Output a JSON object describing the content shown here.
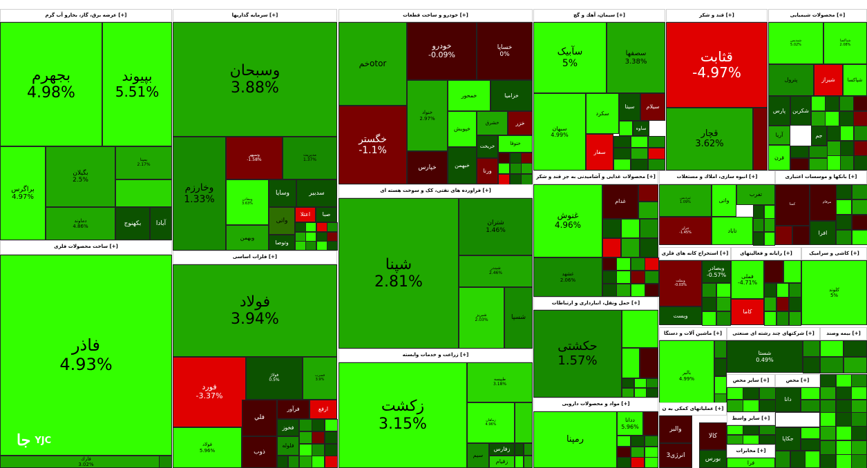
{
  "page": {
    "expand_marker": "[+]"
  },
  "colors": {
    "neutral": "#2b9e04",
    "positive_strong": "#33ff00",
    "negative_strong": "#e00000",
    "negative_dark": "#4a0000"
  },
  "logo": {
    "text": "YJC",
    "glyph": "جا"
  },
  "sectors": [
    {
      "label": "[+] عرضه برق، گاز، بخارو آب گرم"
    },
    {
      "label": "[+] سرمایه گذاریها"
    },
    {
      "label": "[+] خودرو و ساخت قطعات"
    },
    {
      "label": "[+] سیمان، آهك و گچ"
    },
    {
      "label": "[+] قند و شکر"
    },
    {
      "label": "[+] محصولات شیمیایی"
    },
    {
      "label": "[+] ساخت محصولات فلزی"
    },
    {
      "label": "[+] فلزات اساسی"
    },
    {
      "label": "[+] فراورده های نفتی، کک و سوخت هسته ای"
    },
    {
      "label": "[+] محصولات غذایی و آشامیدنی به جز قند و شکر"
    },
    {
      "label": "[+] انبوه سازی، املاك و مستغلات"
    },
    {
      "label": "[+] بانکها و موسسات اعتباری"
    },
    {
      "label": "[+] استخراج کانه های فلزی"
    },
    {
      "label": "[+] رایانه و فعالیتهای"
    },
    {
      "label": "[+] کاشی و سرامیک"
    },
    {
      "label": "[+] حمل ونقل، انبارداری و ارتباطات"
    },
    {
      "label": "[+] ماشین آلات و دستگا"
    },
    {
      "label": "[+] شرکتهای چند رشته ای صنعتی"
    },
    {
      "label": "[+] بیمه وصند"
    },
    {
      "label": "[+] زراعت و خدمات وابسته"
    },
    {
      "label": "[+] مواد و محصولات دارویی"
    },
    {
      "label": "[+] عملیاتهای کمکی به ن"
    },
    {
      "label": "[+] سایر محص"
    },
    {
      "label": "[+] محص"
    },
    {
      "label": "[+] سایر واسط"
    },
    {
      "label": "[+] مخابرات"
    }
  ],
  "stocks": [
    {
      "name": "بجهرم",
      "pct": "4.98%"
    },
    {
      "name": "بپیوند",
      "pct": "5.51%"
    },
    {
      "name": "براگرس",
      "pct": "4.97%"
    },
    {
      "name": "بگیلان",
      "pct": "2.5%"
    },
    {
      "name": "دماوند",
      "pct": "4.86%"
    },
    {
      "name": "بمپنا",
      "pct": "2.17%"
    },
    {
      "name": "بکهنوج",
      "pct": ""
    },
    {
      "name": "آبادا",
      "pct": ""
    },
    {
      "name": "فاذر",
      "pct": "4.93%"
    },
    {
      "name": "فارك",
      "pct": "3.02%"
    },
    {
      "name": "وسبحان",
      "pct": "3.88%"
    },
    {
      "name": "وخارزم",
      "pct": "1.33%"
    },
    {
      "name": "وسپهر",
      "pct": "-1.58%"
    },
    {
      "name": "مدیریت",
      "pct": "1.37%"
    },
    {
      "name": "ومعادن",
      "pct": "3.63%"
    },
    {
      "name": "وبهمن",
      "pct": ""
    },
    {
      "name": "وسایا",
      "pct": ""
    },
    {
      "name": "سدبیر",
      "pct": ""
    },
    {
      "name": "واتی",
      "pct": ""
    },
    {
      "name": "اعتلا",
      "pct": ""
    },
    {
      "name": "صبا",
      "pct": ""
    },
    {
      "name": "وتوصا",
      "pct": ""
    },
    {
      "name": "خمotor",
      "pct": ""
    },
    {
      "name": "خودرو",
      "pct": "-0.09%"
    },
    {
      "name": "خساپا",
      "pct": "0%"
    },
    {
      "name": "خمحور",
      "pct": ""
    },
    {
      "name": "خزامیا",
      "pct": ""
    },
    {
      "name": "خنواد",
      "pct": "2.97%"
    },
    {
      "name": "خشرق",
      "pct": ""
    },
    {
      "name": "خزر",
      "pct": ""
    },
    {
      "name": "خگستر",
      "pct": "-1.1%"
    },
    {
      "name": "خپویش",
      "pct": ""
    },
    {
      "name": "خبهمن",
      "pct": ""
    },
    {
      "name": "خریخت",
      "pct": ""
    },
    {
      "name": "ختوقا",
      "pct": ""
    },
    {
      "name": "خپارس",
      "pct": ""
    },
    {
      "name": "ورنا",
      "pct": ""
    },
    {
      "name": "سآبیک",
      "pct": "5%"
    },
    {
      "name": "سصفها",
      "pct": "3.38%"
    },
    {
      "name": "سبهان",
      "pct": "4.99%"
    },
    {
      "name": "سکرد",
      "pct": ""
    },
    {
      "name": "سیتا",
      "pct": ""
    },
    {
      "name": "سیلام",
      "pct": ""
    },
    {
      "name": "ساوه",
      "pct": ""
    },
    {
      "name": "سفار",
      "pct": ""
    },
    {
      "name": "قثابت",
      "pct": "-4.97%"
    },
    {
      "name": "قچار",
      "pct": "3.62%"
    },
    {
      "name": "شپدیس",
      "pct": "5.02%"
    },
    {
      "name": "شپاکسا",
      "pct": "2.08%"
    },
    {
      "name": "پترول",
      "pct": ""
    },
    {
      "name": "شیراز",
      "pct": ""
    },
    {
      "name": "شپاکسا",
      "pct": ""
    },
    {
      "name": "پارس",
      "pct": ""
    },
    {
      "name": "شکربن",
      "pct": ""
    },
    {
      "name": "آریا",
      "pct": ""
    },
    {
      "name": "جم",
      "pct": ""
    },
    {
      "name": "قرن",
      "pct": ""
    },
    {
      "name": "فولاد",
      "pct": "3.94%"
    },
    {
      "name": "فتوسا",
      "pct": "2.29%"
    },
    {
      "name": "فولاژ",
      "pct": "0.5%"
    },
    {
      "name": "فسرب",
      "pct": "3.9%"
    },
    {
      "name": "فورد",
      "pct": "-3.37%"
    },
    {
      "name": "فرآور",
      "pct": ""
    },
    {
      "name": "ارفع",
      "pct": ""
    },
    {
      "name": "فلي",
      "pct": ""
    },
    {
      "name": "فخوز",
      "pct": ""
    },
    {
      "name": "فلوله",
      "pct": ""
    },
    {
      "name": "فولاد",
      "pct": "5.96%"
    },
    {
      "name": "ذوب",
      "pct": ""
    },
    {
      "name": "شپنا",
      "pct": "2.81%"
    },
    {
      "name": "شتران",
      "pct": "1.46%"
    },
    {
      "name": "شبندر",
      "pct": "2.46%"
    },
    {
      "name": "شبریز",
      "pct": "2.03%"
    },
    {
      "name": "شسپا",
      "pct": ""
    },
    {
      "name": "زکشت",
      "pct": "3.15%"
    },
    {
      "name": "طپیسه",
      "pct": "3.18%"
    },
    {
      "name": "زماهان",
      "pct": "4.96%"
    },
    {
      "name": "سیم",
      "pct": ""
    },
    {
      "name": "زفارس",
      "pct": ""
    },
    {
      "name": "زقیام",
      "pct": ""
    },
    {
      "name": "غنوش",
      "pct": "4.96%"
    },
    {
      "name": "غشهد",
      "pct": "2.06%"
    },
    {
      "name": "غدام",
      "pct": ""
    },
    {
      "name": "ثپردیس",
      "pct": "1.09%"
    },
    {
      "name": "ثتران",
      "pct": "-1.45%"
    },
    {
      "name": "واتی",
      "pct": ""
    },
    {
      "name": "تفرب",
      "pct": ""
    },
    {
      "name": "تاباد",
      "pct": ""
    },
    {
      "name": "وبملت",
      "pct": "-0.03%"
    },
    {
      "name": "وبصادر",
      "pct": "-0.57%"
    },
    {
      "name": "وبست",
      "pct": ""
    },
    {
      "name": "فملی",
      "pct": "-4.71%"
    },
    {
      "name": "کاما",
      "pct": ""
    },
    {
      "name": "کمنا",
      "pct": ""
    },
    {
      "name": "مرقام",
      "pct": ""
    },
    {
      "name": "افرا",
      "pct": ""
    },
    {
      "name": "کلوند",
      "pct": "5%"
    },
    {
      "name": "حکشتی",
      "pct": "1.57%"
    },
    {
      "name": "بالبر",
      "pct": "4.99%"
    },
    {
      "name": "شستا",
      "pct": "0.49%"
    },
    {
      "name": "دانا",
      "pct": ""
    },
    {
      "name": "جکاپا",
      "pct": ""
    },
    {
      "name": "رمپنا",
      "pct": ""
    },
    {
      "name": "ددانا",
      "pct": "5.96%"
    },
    {
      "name": "والبر",
      "pct": ""
    },
    {
      "name": "انرژی3",
      "pct": ""
    },
    {
      "name": "کالا",
      "pct": ""
    },
    {
      "name": "بورس",
      "pct": ""
    },
    {
      "name": "فرا",
      "pct": ""
    },
    {
      "name": "اخابر",
      "pct": ""
    }
  ]
}
